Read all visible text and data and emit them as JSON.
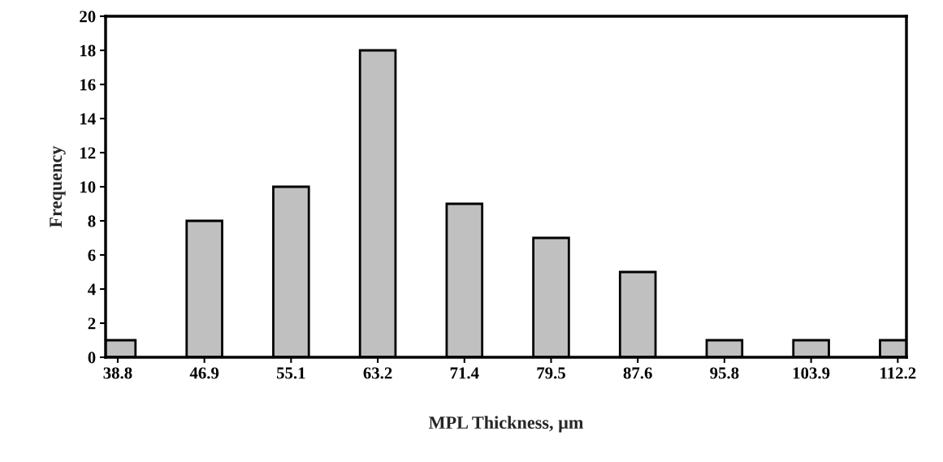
{
  "chart_data": {
    "type": "bar",
    "xlabel": "MPL Thickness, µm",
    "ylabel": "Frequency",
    "categories": [
      "38.8",
      "46.9",
      "55.1",
      "63.2",
      "71.4",
      "79.5",
      "87.6",
      "95.8",
      "103.9",
      "112.2"
    ],
    "values": [
      1,
      8,
      10,
      18,
      9,
      7,
      5,
      1,
      1,
      1
    ],
    "color": "#c0c0c0",
    "ylim": [
      0,
      20
    ],
    "yticks": [
      0,
      2,
      4,
      6,
      8,
      10,
      12,
      14,
      16,
      18,
      20
    ],
    "grid": false
  }
}
